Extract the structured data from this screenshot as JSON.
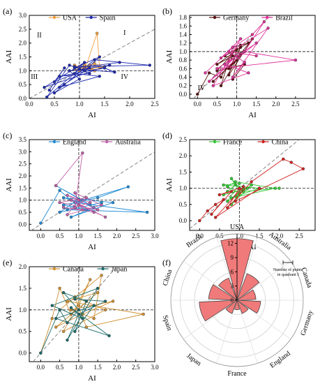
{
  "chart_data": [
    {
      "type": "line",
      "label": "(a)",
      "xlabel": "AI",
      "ylabel": "AAI",
      "xlim": [
        0,
        2.5
      ],
      "ylim": [
        0,
        3.0
      ],
      "xticks": [
        "0.0",
        "0.5",
        "1.0",
        "1.5",
        "2.0",
        "2.5"
      ],
      "yticks": [
        "0.0",
        "0.5",
        "1.0",
        "1.5",
        "2.0",
        "2.5",
        "3.0"
      ],
      "legend_position": "top",
      "quadrant_labels": {
        "I": "I",
        "II": "II",
        "III": "III",
        "IV": "IV"
      },
      "series": [
        {
          "name": "USA",
          "color": "#f0a040",
          "points": [
            [
              0.8,
              1.0
            ],
            [
              1.1,
              1.1
            ],
            [
              0.9,
              1.2
            ],
            [
              1.0,
              1.05
            ],
            [
              1.2,
              1.1
            ],
            [
              1.3,
              1.0
            ],
            [
              1.1,
              1.2
            ],
            [
              1.0,
              1.1
            ],
            [
              1.2,
              1.2
            ],
            [
              1.4,
              1.1
            ],
            [
              1.35,
              2.35
            ],
            [
              1.1,
              1.0
            ],
            [
              0.9,
              1.05
            ],
            [
              1.0,
              1.15
            ],
            [
              1.25,
              1.05
            ],
            [
              1.1,
              1.15
            ],
            [
              1.0,
              1.0
            ],
            [
              1.5,
              1.15
            ],
            [
              1.3,
              1.25
            ],
            [
              1.1,
              1.1
            ]
          ]
        },
        {
          "name": "Spain",
          "color": "#1f2bb0",
          "points": [
            [
              0.4,
              0.3
            ],
            [
              0.7,
              1.1
            ],
            [
              0.5,
              0.6
            ],
            [
              1.2,
              1.1
            ],
            [
              0.6,
              0.4
            ],
            [
              1.4,
              0.8
            ],
            [
              0.9,
              0.9
            ],
            [
              1.1,
              1.3
            ],
            [
              0.3,
              0.4
            ],
            [
              1.6,
              1.2
            ],
            [
              0.8,
              1.0
            ],
            [
              1.0,
              0.7
            ],
            [
              0.5,
              0.2
            ],
            [
              0.7,
              0.5
            ],
            [
              1.3,
              1.4
            ],
            [
              2.4,
              1.2
            ],
            [
              0.9,
              1.15
            ],
            [
              1.2,
              0.9
            ],
            [
              0.6,
              0.8
            ],
            [
              1.5,
              1.1
            ],
            [
              1.7,
              0.95
            ],
            [
              1.0,
              1.05
            ],
            [
              0.35,
              0.05
            ],
            [
              0.8,
              1.2
            ],
            [
              1.1,
              1.0
            ],
            [
              1.4,
              1.5
            ],
            [
              0.9,
              1.1
            ],
            [
              1.8,
              1.3
            ]
          ]
        }
      ]
    },
    {
      "type": "line",
      "label": "(b)",
      "xlabel": "AI",
      "ylabel": "AAI",
      "xlim": [
        -0.2,
        3.0
      ],
      "ylim": [
        -0.1,
        1.85
      ],
      "xticks": [
        "0.0",
        "0.5",
        "1.0",
        "1.5",
        "2.0",
        "2.5"
      ],
      "yticks": [
        "0.0",
        "0.2",
        "0.4",
        "0.6",
        "0.8",
        "1.0",
        "1.2",
        "1.4",
        "1.6",
        "1.8"
      ],
      "legend_position": "top",
      "quadrant_labels": {
        "IV": "IV"
      },
      "series": [
        {
          "name": "Germany",
          "color": "#5a1010",
          "points": [
            [
              0.0,
              0.0
            ],
            [
              0.3,
              0.5
            ],
            [
              0.6,
              0.4
            ],
            [
              0.9,
              0.9
            ],
            [
              0.5,
              0.7
            ],
            [
              1.1,
              1.1
            ],
            [
              0.8,
              0.6
            ],
            [
              1.2,
              1.0
            ],
            [
              0.4,
              0.3
            ],
            [
              1.0,
              0.8
            ],
            [
              0.7,
              0.9
            ],
            [
              1.3,
              1.2
            ],
            [
              0.9,
              1.1
            ],
            [
              0.6,
              0.2
            ],
            [
              1.1,
              0.95
            ],
            [
              1.4,
              1.3
            ],
            [
              0.8,
              0.45
            ],
            [
              1.0,
              1.05
            ],
            [
              0.5,
              0.55
            ],
            [
              1.2,
              0.7
            ],
            [
              0.9,
              0.35
            ],
            [
              1.1,
              1.15
            ]
          ]
        },
        {
          "name": "Brazil",
          "color": "#e0309a",
          "points": [
            [
              0.2,
              0.5
            ],
            [
              0.9,
              1.1
            ],
            [
              1.4,
              1.4
            ],
            [
              1.7,
              1.7
            ],
            [
              1.2,
              1.0
            ],
            [
              2.5,
              0.8
            ],
            [
              0.5,
              0.6
            ],
            [
              1.0,
              0.9
            ],
            [
              0.3,
              0.3
            ],
            [
              1.5,
              1.2
            ],
            [
              0.7,
              0.7
            ],
            [
              1.3,
              0.5
            ],
            [
              0.4,
              0.2
            ],
            [
              1.1,
              1.3
            ],
            [
              0.6,
              0.85
            ],
            [
              1.8,
              1.55
            ],
            [
              0.9,
              0.4
            ],
            [
              1.2,
              0.75
            ],
            [
              0.8,
              1.0
            ],
            [
              1.5,
              0.9
            ]
          ]
        }
      ]
    },
    {
      "type": "line",
      "label": "(c)",
      "xlabel": "AI",
      "ylabel": "AAI",
      "xlim": [
        -0.3,
        3.0
      ],
      "ylim": [
        -0.25,
        3.5
      ],
      "xticks": [
        "0.0",
        "0.5",
        "1.0",
        "1.5",
        "2.0",
        "2.5",
        "3.0"
      ],
      "yticks": [
        "0.0",
        "0.5",
        "1.0",
        "1.5",
        "2.0",
        "2.5",
        "3.0",
        "3.5"
      ],
      "legend_position": "top",
      "series": [
        {
          "name": "England",
          "color": "#1f8ad6",
          "points": [
            [
              0.0,
              0.05
            ],
            [
              0.5,
              1.4
            ],
            [
              0.8,
              1.0
            ],
            [
              1.2,
              0.6
            ],
            [
              0.6,
              0.8
            ],
            [
              1.5,
              1.1
            ],
            [
              2.3,
              1.55
            ],
            [
              0.9,
              0.9
            ],
            [
              2.8,
              0.5
            ],
            [
              0.7,
              0.6
            ],
            [
              1.1,
              1.0
            ],
            [
              0.4,
              1.6
            ],
            [
              1.3,
              0.8
            ],
            [
              0.6,
              1.1
            ],
            [
              1.9,
              0.9
            ],
            [
              0.8,
              0.3
            ],
            [
              1.4,
              0.7
            ],
            [
              1.0,
              1.05
            ],
            [
              0.5,
              0.5
            ],
            [
              1.6,
              0.9
            ]
          ]
        },
        {
          "name": "Australia",
          "color": "#c060a8",
          "points": [
            [
              0.4,
              1.6
            ],
            [
              1.1,
              2.95
            ],
            [
              0.9,
              0.7
            ],
            [
              1.3,
              0.9
            ],
            [
              0.7,
              1.2
            ],
            [
              1.5,
              0.6
            ],
            [
              0.5,
              0.9
            ],
            [
              1.2,
              1.1
            ],
            [
              1.0,
              0.8
            ],
            [
              1.7,
              0.3
            ],
            [
              0.8,
              1.0
            ],
            [
              1.4,
              0.5
            ],
            [
              0.6,
              0.7
            ],
            [
              1.1,
              0.6
            ],
            [
              0.9,
              1.3
            ],
            [
              1.6,
              0.8
            ],
            [
              0.7,
              0.4
            ],
            [
              1.0,
              1.0
            ]
          ]
        }
      ]
    },
    {
      "type": "line",
      "label": "(d)",
      "xlabel": "AI",
      "ylabel": "AAI",
      "xlim": [
        -0.25,
        2.9
      ],
      "ylim": [
        -0.3,
        2.5
      ],
      "xticks": [
        "0.0",
        "0.5",
        "1.0",
        "1.5",
        "2.0",
        "2.5"
      ],
      "yticks": [
        "0.0",
        "0.5",
        "1.0",
        "1.5",
        "2.0",
        "2.5"
      ],
      "legend_position": "top",
      "series": [
        {
          "name": "France",
          "color": "#30c830",
          "points": [
            [
              0.7,
              0.9
            ],
            [
              0.9,
              1.1
            ],
            [
              0.8,
              1.3
            ],
            [
              1.0,
              1.0
            ],
            [
              1.2,
              1.0
            ],
            [
              0.6,
              0.8
            ],
            [
              1.1,
              0.95
            ],
            [
              0.8,
              0.7
            ],
            [
              1.9,
              1.0
            ],
            [
              0.9,
              1.2
            ],
            [
              0.7,
              1.05
            ],
            [
              1.0,
              0.85
            ],
            [
              0.8,
              0.5
            ],
            [
              1.3,
              1.1
            ],
            [
              0.9,
              0.75
            ],
            [
              1.5,
              1.0
            ],
            [
              0.6,
              1.1
            ],
            [
              1.0,
              1.15
            ],
            [
              0.7,
              0.6
            ],
            [
              1.1,
              0.9
            ],
            [
              2.0,
              1.0
            ]
          ]
        },
        {
          "name": "China",
          "color": "#d02020",
          "points": [
            [
              0.0,
              0.0
            ],
            [
              0.2,
              0.3
            ],
            [
              0.4,
              0.5
            ],
            [
              0.6,
              0.65
            ],
            [
              0.3,
              0.2
            ],
            [
              0.8,
              0.9
            ],
            [
              0.5,
              0.8
            ],
            [
              1.0,
              1.0
            ],
            [
              0.7,
              0.4
            ],
            [
              1.3,
              1.2
            ],
            [
              2.1,
              1.9
            ],
            [
              2.3,
              1.8
            ],
            [
              2.6,
              1.6
            ],
            [
              0.9,
              0.6
            ],
            [
              1.1,
              1.05
            ],
            [
              0.4,
              0.1
            ],
            [
              1.5,
              1.0
            ]
          ]
        }
      ]
    },
    {
      "type": "line",
      "label": "(e)",
      "xlabel": "AI",
      "ylabel": "AAI",
      "xlim": [
        -0.3,
        3.0
      ],
      "ylim": [
        -0.2,
        2.0
      ],
      "xticks": [
        "0.0",
        "0.5",
        "1.0",
        "1.5",
        "2.0",
        "2.5",
        "3.0"
      ],
      "yticks": [
        "0.0",
        "0.5",
        "1.0",
        "1.5",
        "2.0"
      ],
      "legend_position": "top",
      "series": [
        {
          "name": "Canada",
          "color": "#d09030",
          "points": [
            [
              0.0,
              0.0
            ],
            [
              0.3,
              0.8
            ],
            [
              0.5,
              1.5
            ],
            [
              0.8,
              0.9
            ],
            [
              1.0,
              1.1
            ],
            [
              1.3,
              1.7
            ],
            [
              0.6,
              0.5
            ],
            [
              1.7,
              1.0
            ],
            [
              0.9,
              1.3
            ],
            [
              1.2,
              0.6
            ],
            [
              2.7,
              0.9
            ],
            [
              0.7,
              1.2
            ],
            [
              1.5,
              1.4
            ],
            [
              0.4,
              0.6
            ],
            [
              1.1,
              0.9
            ],
            [
              1.9,
              1.2
            ],
            [
              0.8,
              1.0
            ],
            [
              1.4,
              0.8
            ],
            [
              1.6,
              1.8
            ],
            [
              0.5,
              1.0
            ]
          ]
        },
        {
          "name": "Japan",
          "color": "#1c6a6a",
          "points": [
            [
              0.0,
              0.0
            ],
            [
              0.5,
              1.0
            ],
            [
              0.7,
              0.7
            ],
            [
              1.0,
              1.0
            ],
            [
              0.6,
              1.4
            ],
            [
              1.2,
              1.2
            ],
            [
              0.9,
              0.5
            ],
            [
              1.4,
              1.1
            ],
            [
              0.4,
              0.8
            ],
            [
              1.8,
              0.4
            ],
            [
              0.8,
              1.05
            ],
            [
              1.1,
              0.8
            ],
            [
              0.3,
              1.1
            ],
            [
              1.5,
              1.5
            ],
            [
              0.7,
              0.3
            ],
            [
              1.0,
              0.9
            ],
            [
              1.7,
              1.2
            ],
            [
              0.9,
              1.25
            ]
          ]
        }
      ]
    },
    {
      "type": "polar-bar",
      "label": "(f)",
      "legend_text": [
        "Number of points",
        "in quadrant I"
      ],
      "rticks": [
        "0",
        "3",
        "6",
        "9",
        "12"
      ],
      "rmax": 14,
      "color": "#f07a7a",
      "categories": [
        "USA",
        "Australia",
        "Canada",
        "Germany",
        "England",
        "France",
        "Japan",
        "Spain",
        "China",
        "Brazil"
      ],
      "values": [
        13,
        6,
        4,
        5,
        3,
        2,
        3,
        8,
        6,
        5
      ]
    }
  ]
}
